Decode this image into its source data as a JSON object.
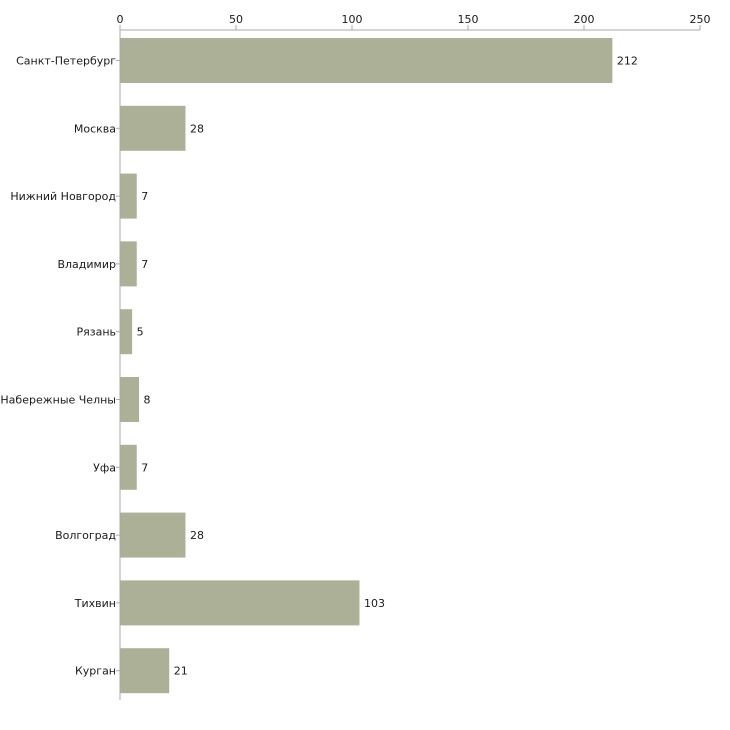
{
  "chart_data": {
    "type": "bar",
    "orientation": "horizontal",
    "title": "",
    "xlabel": "",
    "ylabel": "",
    "xlim": [
      0,
      250
    ],
    "ticks": [
      0,
      50,
      100,
      150,
      200,
      250
    ],
    "tick_labels": [
      "0",
      "50",
      "100",
      "150",
      "200",
      "250"
    ],
    "categories": [
      "Санкт-Петербург",
      "Москва",
      "Нижний Новгород",
      "Владимир",
      "Рязань",
      "Набережные Челны",
      "Уфа",
      "Волгоград",
      "Тихвин",
      "Курган"
    ],
    "values": [
      212,
      28,
      7,
      7,
      5,
      8,
      7,
      28,
      103,
      21
    ],
    "value_labels": [
      "212",
      "28",
      "7",
      "7",
      "5",
      "8",
      "7",
      "28",
      "103",
      "21"
    ],
    "bar_color": "#abb097",
    "axis_color": "#aaaaaa",
    "legend": "none",
    "grid": false
  }
}
